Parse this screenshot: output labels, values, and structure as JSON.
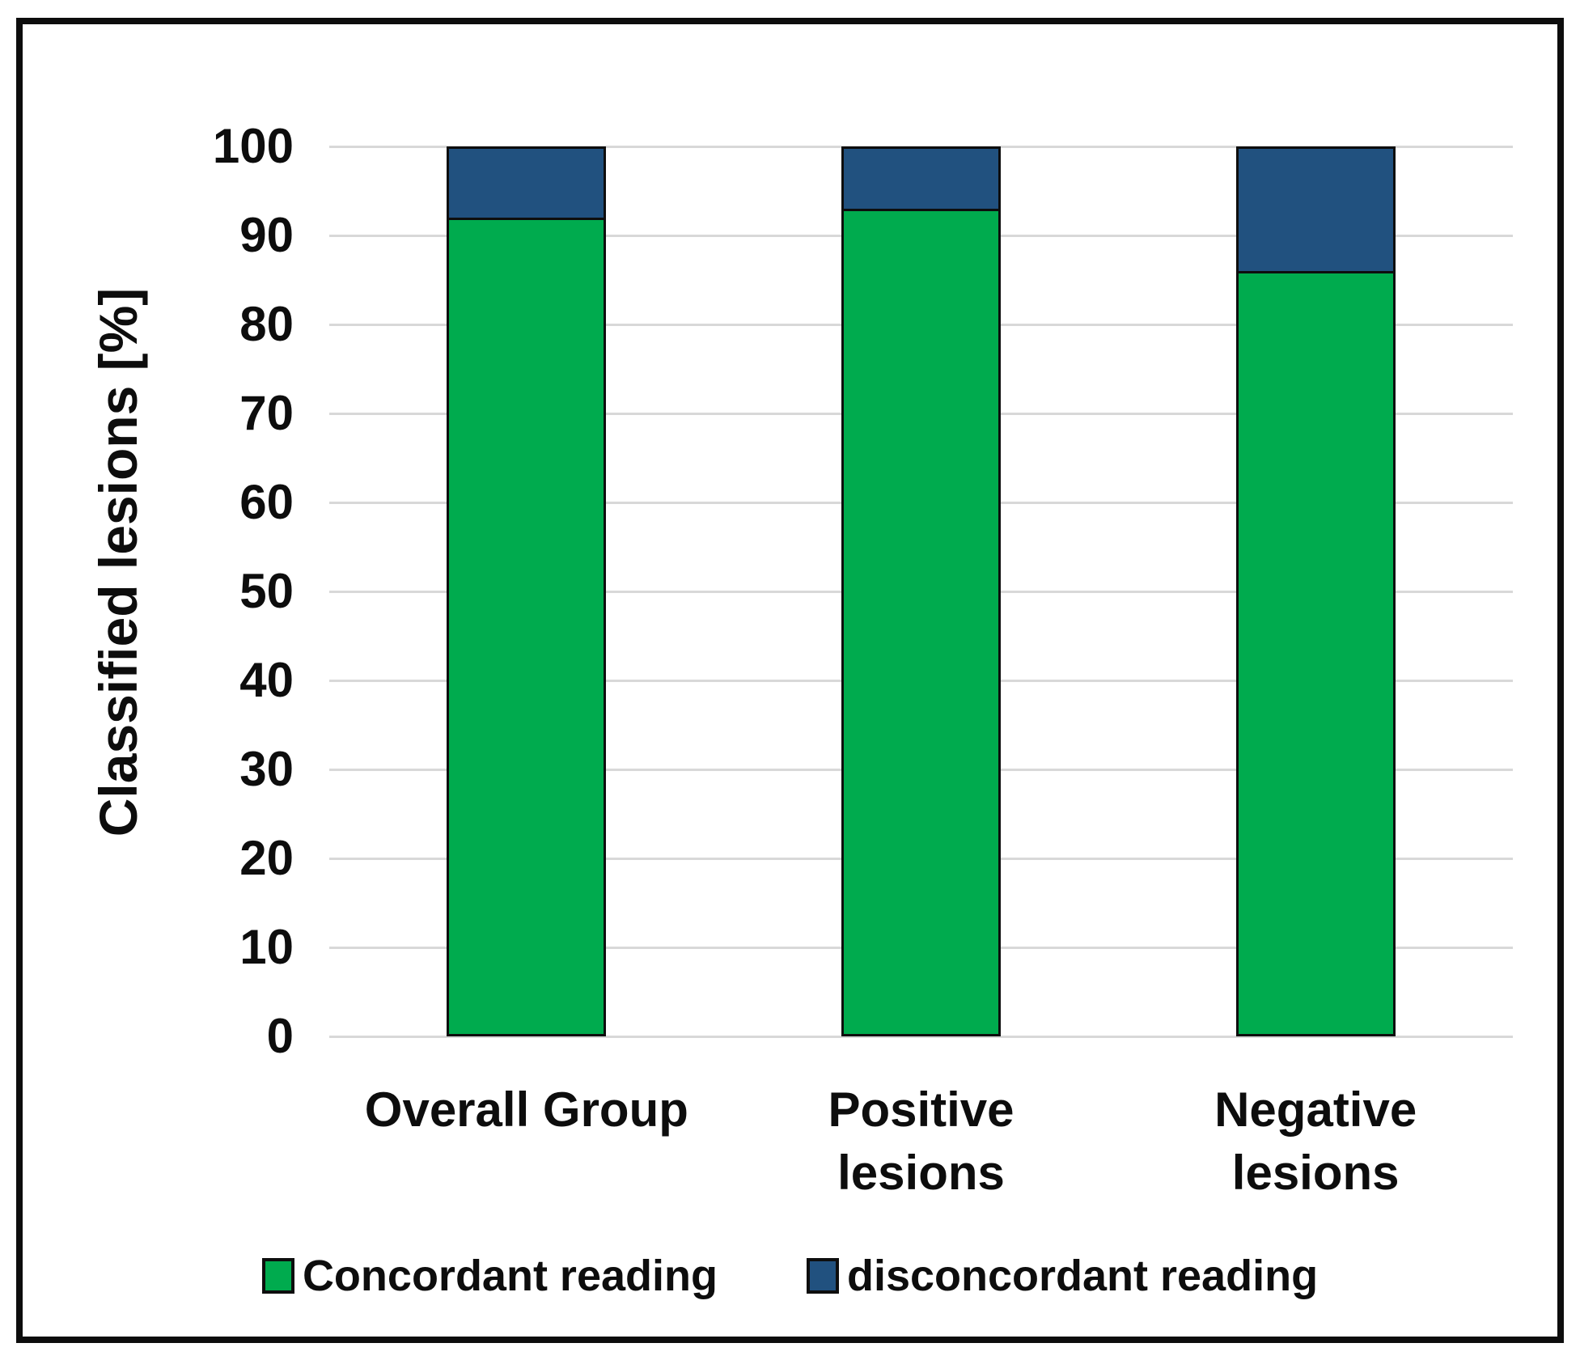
{
  "figure": {
    "background": "#ffffff",
    "border_color": "#0d0d0d"
  },
  "chart_data": {
    "type": "bar",
    "stacked": true,
    "title": "",
    "xlabel": "",
    "ylabel": "Classified lesions [%]",
    "categories": [
      "Overall Group",
      "Positive lesions",
      "Negative lesions"
    ],
    "category_lines": [
      [
        "Overall Group"
      ],
      [
        "Positive",
        "lesions"
      ],
      [
        "Negative",
        "lesions"
      ]
    ],
    "series": [
      {
        "name": "Concordant reading",
        "color": "#00ab4e",
        "values": [
          92,
          93,
          86
        ]
      },
      {
        "name": "disconcordant reading",
        "color": "#21517f",
        "values": [
          8,
          7,
          14
        ]
      }
    ],
    "ylim": [
      0,
      100
    ],
    "yticks": [
      0,
      10,
      20,
      30,
      40,
      50,
      60,
      70,
      80,
      90,
      100
    ],
    "grid": true,
    "gridline_color": "#d8d8d8",
    "bar_border_color": "#0e0e0e",
    "legend_position": "bottom"
  }
}
